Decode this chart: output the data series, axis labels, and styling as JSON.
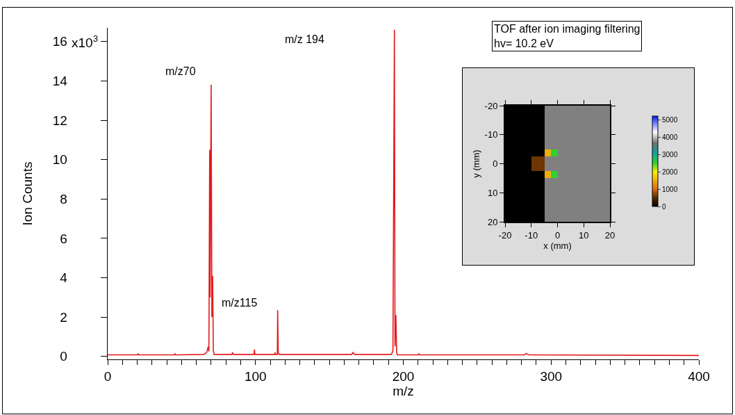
{
  "chart_data": [
    {
      "type": "line",
      "xlabel": "m/z",
      "ylabel": "Ion Counts",
      "x": [
        0,
        20,
        20.5,
        21,
        45,
        45.5,
        46,
        65,
        67,
        68,
        68.5,
        69,
        69.3,
        70,
        70.5,
        71,
        71.5,
        72,
        84,
        84.5,
        85,
        99,
        99.3,
        99.6,
        113,
        113.3,
        113.6,
        114.8,
        115,
        115.4,
        116,
        165,
        166,
        167,
        192,
        193,
        194,
        194.4,
        195,
        195.5,
        196,
        210,
        210.5,
        211,
        282,
        283,
        285,
        400
      ],
      "series": [
        {
          "color": "#e31a1c",
          "values": [
            0.08,
            0.08,
            0.15,
            0.08,
            0.08,
            0.15,
            0.08,
            0.1,
            0.2,
            0.5,
            0.25,
            10.5,
            3,
            13.8,
            2,
            4.1,
            0.3,
            0.1,
            0.1,
            0.2,
            0.1,
            0.1,
            0.35,
            0.1,
            0.1,
            0.2,
            0.1,
            0.1,
            2.35,
            0.2,
            0.1,
            0.1,
            0.2,
            0.1,
            0.1,
            0.3,
            16.6,
            0.5,
            2.1,
            0.2,
            0.08,
            0.08,
            0.15,
            0.08,
            0.08,
            0.15,
            0.08,
            0.05
          ]
        }
      ],
      "xlim": [
        0,
        400
      ],
      "xticks": [
        0,
        {
          "value": 10,
          "label": null
        },
        {
          "value": 20,
          "label": null
        },
        {
          "value": 30,
          "label": null
        },
        {
          "value": 40,
          "label": null
        },
        {
          "value": 50,
          "label": null
        },
        {
          "value": 60,
          "label": null
        },
        {
          "value": 70,
          "label": null
        },
        {
          "value": 80,
          "label": null
        },
        {
          "value": 90,
          "label": null
        },
        100,
        {
          "value": 110,
          "label": null
        },
        {
          "value": 120,
          "label": null
        },
        {
          "value": 130,
          "label": null
        },
        {
          "value": 140,
          "label": null
        },
        {
          "value": 150,
          "label": null
        },
        {
          "value": 160,
          "label": null
        },
        {
          "value": 170,
          "label": null
        },
        {
          "value": 180,
          "label": null
        },
        {
          "value": 190,
          "label": null
        },
        200,
        {
          "value": 210,
          "label": null
        },
        {
          "value": 220,
          "label": null
        },
        {
          "value": 230,
          "label": null
        },
        {
          "value": 240,
          "label": null
        },
        {
          "value": 250,
          "label": null
        },
        {
          "value": 260,
          "label": null
        },
        {
          "value": 270,
          "label": null
        },
        {
          "value": 280,
          "label": null
        },
        {
          "value": 290,
          "label": null
        },
        300,
        {
          "value": 310,
          "label": null
        },
        {
          "value": 320,
          "label": null
        },
        {
          "value": 330,
          "label": null
        },
        {
          "value": 340,
          "label": null
        },
        {
          "value": 350,
          "label": null
        },
        {
          "value": 360,
          "label": null
        },
        {
          "value": 370,
          "label": null
        },
        {
          "value": 380,
          "label": null
        },
        {
          "value": 390,
          "label": null
        },
        400
      ],
      "ylim": [
        -0.15,
        16.7
      ],
      "yticks": [
        0,
        2,
        4,
        6,
        8,
        10,
        12,
        14,
        16
      ],
      "grid": false,
      "marker": "none",
      "line_style": "solid",
      "annotations": [
        "m/z70",
        "m/z115",
        "m/z 194",
        "TOF after ion imaging filtering\nhv= 10.2 eV",
        "x10$^{3}$"
      ]
    },
    {
      "type": "heatmap",
      "xlabel": "x (mm)",
      "ylabel": "y (mm)",
      "x": [
        -18.75,
        -16.25,
        -13.75,
        -11.25,
        -8.75,
        -6.25,
        -3.75,
        -1.25,
        1.25,
        3.75,
        6.25,
        8.75,
        11.25,
        13.75,
        16.25,
        18.75
      ],
      "y": [
        -18.75,
        -16.25,
        -13.75,
        -11.25,
        -8.75,
        -6.25,
        -3.75,
        -1.25,
        1.25,
        3.75,
        6.25,
        8.75,
        11.25,
        13.75,
        16.25,
        18.75
      ],
      "cells": [
        [
          0,
          0,
          0,
          0,
          0,
          0,
          null,
          null,
          null,
          null,
          null,
          null,
          null,
          null,
          null,
          null
        ],
        [
          0,
          0,
          0,
          0,
          0,
          0,
          null,
          null,
          null,
          null,
          null,
          null,
          null,
          null,
          null,
          null
        ],
        [
          0,
          0,
          0,
          0,
          0,
          0,
          null,
          null,
          null,
          null,
          null,
          null,
          null,
          null,
          null,
          null
        ],
        [
          0,
          0,
          0,
          0,
          0,
          0,
          null,
          null,
          null,
          null,
          null,
          null,
          null,
          null,
          null,
          null
        ],
        [
          0,
          0,
          0,
          0,
          0,
          0,
          null,
          null,
          null,
          null,
          null,
          null,
          null,
          null,
          null,
          null
        ],
        [
          0,
          0,
          0,
          0,
          0,
          0,
          null,
          null,
          null,
          null,
          null,
          null,
          null,
          null,
          null,
          null
        ],
        [
          0,
          0,
          0,
          0,
          0,
          0,
          1500,
          2500,
          null,
          null,
          null,
          null,
          null,
          null,
          null,
          null
        ],
        [
          0,
          0,
          0,
          0,
          600,
          600,
          null,
          null,
          null,
          null,
          null,
          null,
          null,
          null,
          null,
          null
        ],
        [
          0,
          0,
          0,
          0,
          600,
          600,
          null,
          null,
          null,
          null,
          null,
          null,
          null,
          null,
          null,
          null
        ],
        [
          0,
          0,
          0,
          0,
          0,
          0,
          1500,
          2500,
          null,
          null,
          null,
          null,
          null,
          null,
          null,
          null
        ],
        [
          0,
          0,
          0,
          0,
          0,
          0,
          null,
          null,
          null,
          null,
          null,
          null,
          null,
          null,
          null,
          null
        ],
        [
          0,
          0,
          0,
          0,
          0,
          0,
          null,
          null,
          null,
          null,
          null,
          null,
          null,
          null,
          null,
          null
        ],
        [
          0,
          0,
          0,
          0,
          0,
          0,
          null,
          null,
          null,
          null,
          null,
          null,
          null,
          null,
          null,
          null
        ],
        [
          0,
          0,
          0,
          0,
          0,
          0,
          null,
          null,
          null,
          null,
          null,
          null,
          null,
          null,
          null,
          null
        ],
        [
          0,
          0,
          0,
          0,
          0,
          0,
          null,
          null,
          null,
          null,
          null,
          null,
          null,
          null,
          null,
          null
        ],
        [
          0,
          0,
          0,
          0,
          0,
          0,
          null,
          null,
          null,
          null,
          null,
          null,
          null,
          null,
          null,
          null
        ]
      ],
      "xlim": [
        -20,
        20
      ],
      "xticks": [
        -20,
        -10,
        0,
        10,
        20
      ],
      "ylim": [
        20,
        -20
      ],
      "yticks": [
        -20,
        -10,
        0,
        10,
        20
      ],
      "clim": [
        0,
        5200
      ],
      "cticks": [
        0,
        1000,
        2000,
        3000,
        4000,
        5000
      ]
    }
  ]
}
